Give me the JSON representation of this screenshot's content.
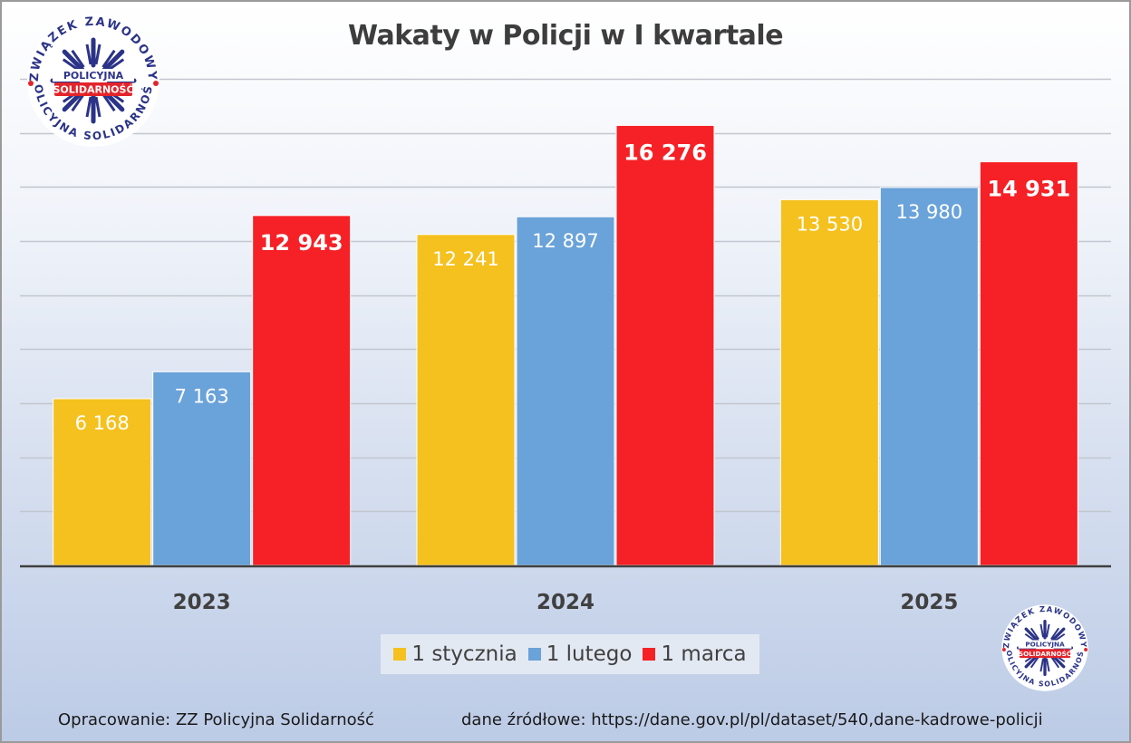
{
  "chart_data": {
    "type": "bar",
    "title": "Wakaty w Policji w I kwartale",
    "categories": [
      "2023",
      "2024",
      "2025"
    ],
    "series": [
      {
        "name": "1 stycznia",
        "color": "#f5c11f",
        "values": [
          6168,
          12241,
          13530
        ],
        "labels": [
          "6 168",
          "12 241",
          "13 530"
        ]
      },
      {
        "name": "1 lutego",
        "color": "#6aa2da",
        "values": [
          7163,
          12897,
          13980
        ],
        "labels": [
          "7 163",
          "12 897",
          "13 980"
        ]
      },
      {
        "name": "1 marca",
        "color": "#f52126",
        "values": [
          12943,
          16276,
          14931
        ],
        "labels": [
          "12 943",
          "16 276",
          "14 931"
        ]
      }
    ],
    "ylim": [
      0,
      18000
    ],
    "grid": true,
    "legend_position": "bottom",
    "xlabel": "",
    "ylabel": ""
  },
  "footer": {
    "left": "Opracowanie: ZZ Policyjna Solidarność",
    "right": "dane źródłowe: https://dane.gov.pl/pl/dataset/540,dane-kadrowe-policji"
  },
  "logo": {
    "outer_text": "ZWIĄZEK ZAWODOWY",
    "inner_top": "POLICYJNA",
    "inner_bottom": "SOLIDARNOŚĆ",
    "ring_text": "POLICYJNA SOLIDARNOŚĆ"
  }
}
